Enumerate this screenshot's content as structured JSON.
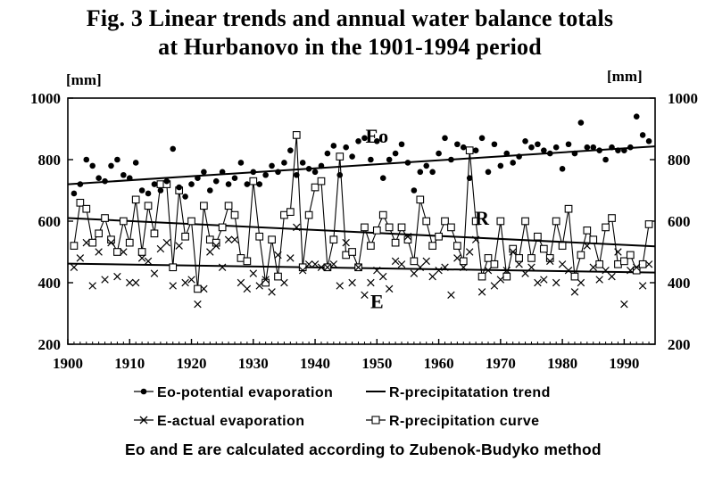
{
  "title_lines": [
    "Fig. 3  Linear trends  and annual  water balance totals",
    "at Hurbanovo  in  the  1901-1994  period"
  ],
  "footnote": "Eo and E are calculated according to Zubenok-Budyko method",
  "chart_data": {
    "type": "line",
    "ylabel_left": "[mm]",
    "ylabel_right": "[mm]",
    "xlim": [
      1900,
      1995
    ],
    "ylim": [
      200,
      1000
    ],
    "x_ticks": [
      1900,
      1910,
      1920,
      1930,
      1940,
      1950,
      1960,
      1970,
      1980,
      1990
    ],
    "y_ticks": [
      200,
      400,
      600,
      800,
      1000
    ],
    "grid": false,
    "legend_position": "bottom",
    "series_letters": [
      "Eo",
      "R",
      "E"
    ],
    "legend": [
      {
        "key": "eo",
        "label": "Eo-potential evaporation"
      },
      {
        "key": "r_trend",
        "label": "R-precipitatation trend"
      },
      {
        "key": "e",
        "label": "E-actual evaporation"
      },
      {
        "key": "r_curve",
        "label": "R-precipitation curve"
      }
    ],
    "x": [
      1901,
      1902,
      1903,
      1904,
      1905,
      1906,
      1907,
      1908,
      1909,
      1910,
      1911,
      1912,
      1913,
      1914,
      1915,
      1916,
      1917,
      1918,
      1919,
      1920,
      1921,
      1922,
      1923,
      1924,
      1925,
      1926,
      1927,
      1928,
      1929,
      1930,
      1931,
      1932,
      1933,
      1934,
      1935,
      1936,
      1937,
      1938,
      1939,
      1940,
      1941,
      1942,
      1943,
      1944,
      1945,
      1946,
      1947,
      1948,
      1949,
      1950,
      1951,
      1952,
      1953,
      1954,
      1955,
      1956,
      1957,
      1958,
      1959,
      1960,
      1961,
      1962,
      1963,
      1964,
      1965,
      1966,
      1967,
      1968,
      1969,
      1970,
      1971,
      1972,
      1973,
      1974,
      1975,
      1976,
      1977,
      1978,
      1979,
      1980,
      1981,
      1982,
      1983,
      1984,
      1985,
      1986,
      1987,
      1988,
      1989,
      1990,
      1991,
      1992,
      1993,
      1994
    ],
    "series": [
      {
        "key": "eo",
        "values": [
          690,
          720,
          800,
          780,
          740,
          730,
          780,
          800,
          750,
          740,
          790,
          700,
          690,
          720,
          700,
          730,
          835,
          710,
          680,
          720,
          740,
          760,
          700,
          730,
          760,
          720,
          740,
          790,
          720,
          760,
          720,
          750,
          780,
          760,
          790,
          830,
          750,
          790,
          770,
          760,
          780,
          820,
          845,
          750,
          840,
          810,
          860,
          870,
          800,
          860,
          740,
          800,
          820,
          850,
          790,
          700,
          760,
          780,
          760,
          820,
          870,
          800,
          850,
          840,
          740,
          830,
          870,
          760,
          850,
          780,
          820,
          790,
          810,
          860,
          840,
          850,
          830,
          820,
          840,
          770,
          850,
          820,
          920,
          840,
          840,
          830,
          800,
          840,
          830,
          830,
          840,
          940,
          880,
          860
        ]
      },
      {
        "key": "e",
        "values": [
          450,
          480,
          530,
          390,
          500,
          410,
          530,
          420,
          500,
          400,
          400,
          480,
          470,
          430,
          510,
          530,
          390,
          520,
          400,
          410,
          330,
          380,
          500,
          520,
          450,
          540,
          540,
          400,
          380,
          430,
          390,
          410,
          370,
          490,
          400,
          480,
          580,
          440,
          460,
          460,
          450,
          450,
          460,
          390,
          530,
          400,
          450,
          360,
          400,
          440,
          420,
          380,
          470,
          460,
          550,
          430,
          450,
          470,
          420,
          440,
          450,
          360,
          480,
          450,
          500,
          540,
          370,
          440,
          390,
          410,
          440,
          500,
          460,
          430,
          450,
          400,
          410,
          470,
          400,
          460,
          440,
          370,
          400,
          520,
          450,
          410,
          440,
          420,
          500,
          330,
          440,
          450,
          390,
          460
        ]
      },
      {
        "key": "r_curve",
        "values": [
          520,
          660,
          640,
          530,
          560,
          610,
          540,
          500,
          600,
          530,
          670,
          500,
          650,
          560,
          720,
          720,
          450,
          700,
          550,
          600,
          380,
          650,
          540,
          530,
          580,
          650,
          620,
          480,
          470,
          730,
          550,
          400,
          540,
          420,
          620,
          630,
          880,
          450,
          620,
          710,
          730,
          450,
          540,
          810,
          490,
          500,
          450,
          580,
          520,
          570,
          620,
          580,
          530,
          580,
          540,
          470,
          670,
          600,
          520,
          550,
          600,
          580,
          520,
          470,
          830,
          600,
          420,
          480,
          460,
          600,
          420,
          510,
          480,
          600,
          480,
          550,
          510,
          480,
          600,
          520,
          640,
          420,
          490,
          570,
          540,
          460,
          580,
          610,
          460,
          470,
          490,
          440,
          460,
          590
        ]
      }
    ],
    "trends": [
      {
        "key": "eo_trend",
        "start": [
          1900,
          720
        ],
        "end": [
          1995,
          843
        ]
      },
      {
        "key": "r_trend",
        "start": [
          1900,
          610
        ],
        "end": [
          1995,
          518
        ]
      },
      {
        "key": "e_trend",
        "start": [
          1900,
          462
        ],
        "end": [
          1995,
          433
        ]
      }
    ]
  }
}
